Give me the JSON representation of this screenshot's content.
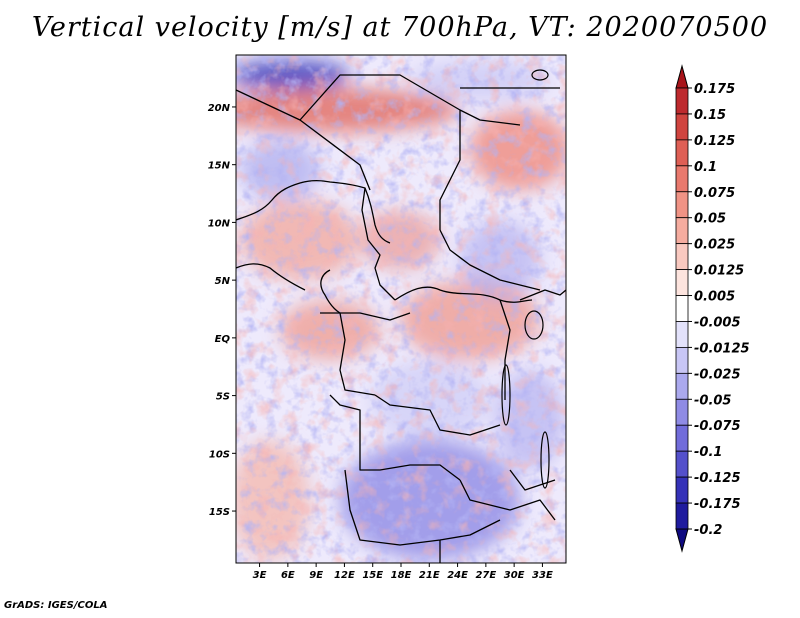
{
  "title": "Vertical velocity [m/s] at 700hPa, VT: 2020070500",
  "footer": "GrADS: IGES/COLA",
  "map": {
    "variable": "Vertical velocity",
    "units": "m/s",
    "level": "700hPa",
    "valid_time": "2020070500",
    "lon_ticks": [
      "3E",
      "6E",
      "9E",
      "12E",
      "15E",
      "18E",
      "21E",
      "24E",
      "27E",
      "30E",
      "33E"
    ],
    "lat_ticks": [
      "20N",
      "15N",
      "10N",
      "5N",
      "EQ",
      "5S",
      "10S",
      "15S"
    ],
    "lon_range": [
      0.5,
      35.5
    ],
    "lat_range": [
      -19.5,
      24.5
    ]
  },
  "colorbar": {
    "labels": [
      "0.175",
      "0.15",
      "0.125",
      "0.1",
      "0.075",
      "0.05",
      "0.025",
      "0.0125",
      "0.005",
      "-0.005",
      "-0.0125",
      "-0.025",
      "-0.05",
      "-0.075",
      "-0.1",
      "-0.125",
      "-0.175",
      "-0.2"
    ],
    "colors": [
      "#a8141a",
      "#be2a2e",
      "#d0443f",
      "#de5f55",
      "#e9796d",
      "#f09385",
      "#f5ac9f",
      "#f9c9c0",
      "#fde4de",
      "#ffffff",
      "#e3e2fb",
      "#c8c6f5",
      "#aba9ee",
      "#8f8be5",
      "#716cda",
      "#5450cb",
      "#3532b8",
      "#1f1b9e",
      "#0f0a80"
    ]
  }
}
